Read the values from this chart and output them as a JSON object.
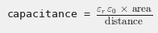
{
  "formula": "capacitance = $\\dfrac{\\varepsilon_r\\,\\varepsilon_0\\,\\times\\,\\mathrm{area}}{\\mathrm{distance}}$",
  "bg_color": "#f0f0f0",
  "text_color": "#1a1a1a",
  "font_size": 9.5
}
